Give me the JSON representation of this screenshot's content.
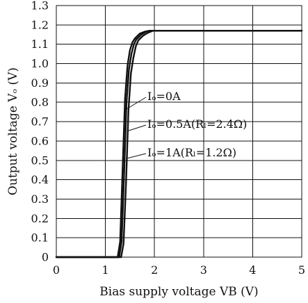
{
  "chart_data": {
    "type": "line",
    "title": "",
    "xlabel": "Bias supply voltage VB (V)",
    "ylabel": "Output voltage Vₒ (V)",
    "xlim": [
      0,
      5
    ],
    "ylim": [
      0,
      1.3
    ],
    "grid": true,
    "x_ticks": [
      "0",
      "1",
      "2",
      "3",
      "4",
      "5"
    ],
    "y_ticks": [
      "0",
      "0.1",
      "0.2",
      "0.3",
      "0.4",
      "0.5",
      "0.6",
      "0.7",
      "0.8",
      "0.9",
      "1.0",
      "1.1",
      "1.2",
      "1.3"
    ],
    "series": [
      {
        "name": "Iₒ=0A",
        "x": [
          0,
          1.25,
          1.3,
          1.35,
          1.4,
          1.45,
          1.5,
          1.55,
          1.6,
          1.7,
          1.8,
          1.9,
          2.0,
          5.0
        ],
        "y": [
          0,
          0,
          0.08,
          0.45,
          0.82,
          0.99,
          1.07,
          1.11,
          1.13,
          1.155,
          1.165,
          1.17,
          1.17,
          1.17
        ]
      },
      {
        "name": "Iₒ=0.5A(Rₗ=2.4Ω)",
        "x": [
          0,
          1.28,
          1.33,
          1.38,
          1.43,
          1.48,
          1.53,
          1.58,
          1.63,
          1.73,
          1.83,
          1.93,
          2.0,
          5.0
        ],
        "y": [
          0,
          0,
          0.08,
          0.42,
          0.8,
          0.97,
          1.05,
          1.1,
          1.125,
          1.15,
          1.165,
          1.17,
          1.17,
          1.17
        ]
      },
      {
        "name": "Iₒ=1A(Rₗ=1.2Ω)",
        "x": [
          0,
          1.32,
          1.37,
          1.42,
          1.47,
          1.52,
          1.57,
          1.62,
          1.67,
          1.77,
          1.87,
          1.97,
          2.0,
          5.0
        ],
        "y": [
          0,
          0,
          0.07,
          0.38,
          0.76,
          0.95,
          1.03,
          1.09,
          1.12,
          1.145,
          1.16,
          1.17,
          1.17,
          1.17
        ]
      }
    ]
  }
}
